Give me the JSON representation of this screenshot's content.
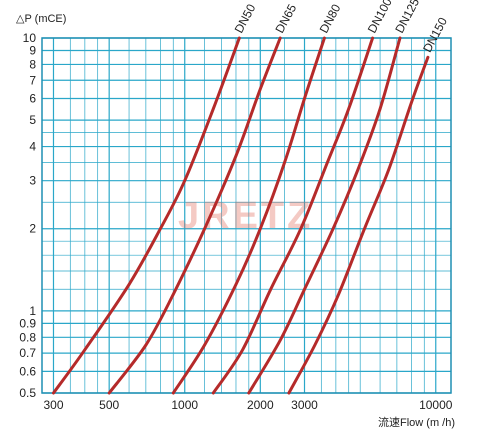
{
  "chart_data": {
    "type": "line",
    "ylabel": "△P (mCE)",
    "xlabel": "流速Flow (m /h)",
    "x_scale": "log",
    "y_scale": "log",
    "xlim": [
      270,
      11500
    ],
    "ylim": [
      0.5,
      10
    ],
    "x_ticks": [
      "300",
      "500",
      "1000",
      "2000",
      "3000",
      "10000"
    ],
    "x_tick_values": [
      300,
      500,
      1000,
      2000,
      3000,
      10000
    ],
    "y_ticks": [
      "0.5",
      "0.6",
      "0.7",
      "0.8",
      "0.9",
      "1",
      "2",
      "3",
      "4",
      "5",
      "6",
      "7",
      "8",
      "9",
      "10"
    ],
    "y_tick_values": [
      0.5,
      0.6,
      0.7,
      0.8,
      0.9,
      1,
      2,
      3,
      4,
      5,
      6,
      7,
      8,
      9,
      10
    ],
    "grid": true,
    "watermark": "JRETZ",
    "colors": {
      "grid": "#2aa7c9",
      "curve": "#b52a2a",
      "frame": "#1f8fb3",
      "watermark": "#e06a5a"
    },
    "series": [
      {
        "name": "DN50",
        "x": [
          300,
          400,
          600,
          800,
          1000,
          1300,
          1650
        ],
        "y": [
          0.5,
          0.72,
          1.25,
          2.0,
          3.0,
          5.5,
          10
        ]
      },
      {
        "name": "DN65",
        "x": [
          500,
          700,
          900,
          1200,
          1600,
          2000,
          2400
        ],
        "y": [
          0.5,
          0.75,
          1.15,
          2.0,
          3.7,
          6.5,
          10
        ]
      },
      {
        "name": "DN80",
        "x": [
          900,
          1200,
          1600,
          2000,
          2500,
          3000,
          3600
        ],
        "y": [
          0.5,
          0.75,
          1.25,
          2.0,
          3.5,
          6.0,
          10
        ]
      },
      {
        "name": "DN100",
        "x": [
          1300,
          1700,
          2200,
          2900,
          3700,
          4500,
          5600
        ],
        "y": [
          0.5,
          0.72,
          1.2,
          2.0,
          3.5,
          5.5,
          10
        ]
      },
      {
        "name": "DN125",
        "x": [
          1800,
          2400,
          3000,
          3900,
          4900,
          6000,
          7200
        ],
        "y": [
          0.5,
          0.78,
          1.2,
          2.0,
          3.3,
          5.5,
          10
        ]
      },
      {
        "name": "DN150",
        "x": [
          2600,
          3300,
          4100,
          5200,
          6500,
          8000,
          9300
        ],
        "y": [
          0.5,
          0.75,
          1.15,
          2.0,
          3.3,
          5.8,
          8.5
        ]
      }
    ]
  }
}
